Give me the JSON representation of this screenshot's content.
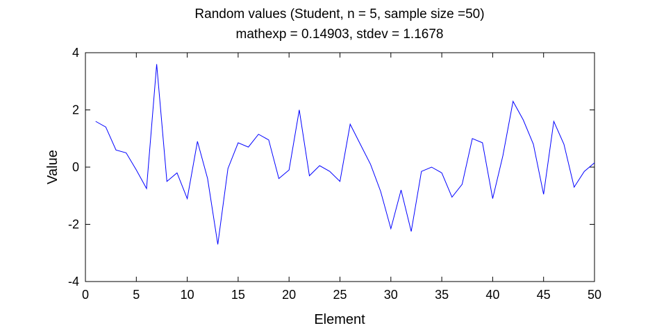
{
  "chart_data": {
    "type": "line",
    "title": "Random values (Student, n = 5, sample size =50)",
    "subtitle": "mathexp = 0.14903, stdev = 1.1678",
    "xlabel": "Element",
    "ylabel": "Value",
    "xlim": [
      0,
      50
    ],
    "ylim": [
      -4,
      4
    ],
    "xticks": [
      0,
      5,
      10,
      15,
      20,
      25,
      30,
      35,
      40,
      45,
      50
    ],
    "yticks": [
      -4,
      -2,
      0,
      2,
      4
    ],
    "grid": false,
    "line_color": "#0000ff",
    "series": [
      {
        "name": "Random values",
        "x": [
          1,
          2,
          3,
          4,
          5,
          6,
          7,
          8,
          9,
          10,
          11,
          12,
          13,
          14,
          15,
          16,
          17,
          18,
          19,
          20,
          21,
          22,
          23,
          24,
          25,
          26,
          27,
          28,
          29,
          30,
          31,
          32,
          33,
          34,
          35,
          36,
          37,
          38,
          39,
          40,
          41,
          42,
          43,
          44,
          45,
          46,
          47,
          48,
          49,
          50
        ],
        "values": [
          1.6,
          1.4,
          0.6,
          0.5,
          -0.1,
          -0.75,
          3.6,
          -0.5,
          -0.2,
          -1.1,
          0.9,
          -0.4,
          -2.7,
          -0.05,
          0.85,
          0.7,
          1.15,
          0.95,
          -0.4,
          -0.1,
          2.0,
          -0.3,
          0.05,
          -0.15,
          -0.5,
          1.5,
          0.8,
          0.1,
          -0.85,
          -2.15,
          -0.8,
          -2.25,
          -0.15,
          0.0,
          -0.2,
          -1.05,
          -0.6,
          1.0,
          0.85,
          -1.1,
          0.4,
          2.3,
          1.65,
          0.8,
          -0.95,
          1.6,
          0.8,
          -0.7,
          -0.15,
          0.15
        ]
      }
    ]
  }
}
